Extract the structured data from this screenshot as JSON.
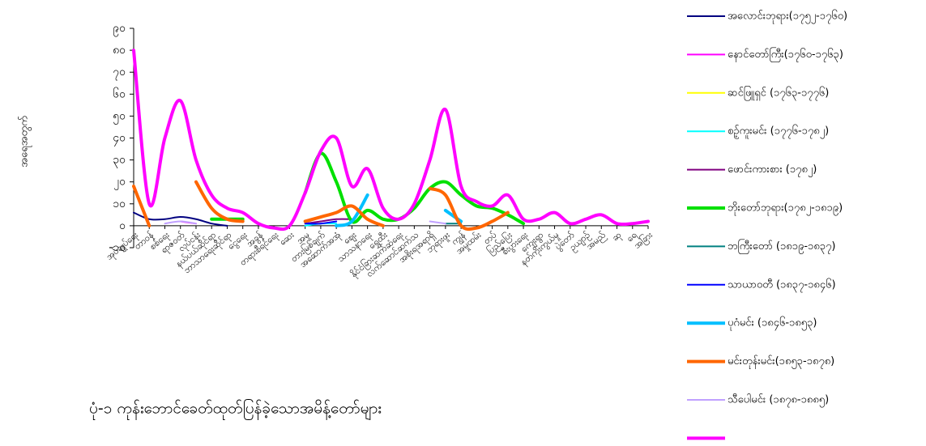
{
  "chart_data": {
    "type": "line",
    "title": "ပုံ-၁ ကုန်းဘောင်ခေတ်ထုတ်ပြန်ခဲ့သောအမိန့်တော်များ",
    "y_label": "အရေအတွက်",
    "categories": [
      "အုပ်ချုပ်ရေး",
      "တာဝန်",
      "စစ်ရေး",
      "ရာဇဝတ်",
      "လုပ်ငန်း",
      "နယ်ပယ်ဆိုင်ရာ",
      "ဘာသာရေးဆိုင်ရာ",
      "ငွေရေး",
      "အခွန်",
      "တရားစီရင်ရေး",
      "ဆေး",
      "အမှု",
      "တားမြစ်ချက်",
      "အဆောက်အအုံ",
      "ဈေး",
      "သာသနာရေး",
      "ရွှေထီး",
      "နိုင်ငံခြားဆက်ဆံရေး",
      "လက်ဆောင်ဆက်သ",
      "အစိုးရအရာရှိ",
      "ဘုရားဖူး",
      "ကျွန်",
      "အမှုထမ်း",
      "တပ်",
      "ပြည်ပြေး",
      "စီးပွားရေး",
      "ကျေးရွာ",
      "နတ်ကိုးကွယ်မှု",
      "ပွဲတော်",
      "ဥယျာဉ်",
      "အမည်",
      "ဆု",
      "ရေ",
      "အခြား"
    ],
    "ylim": [
      -10,
      90
    ],
    "yticks": [
      {
        "value": -10,
        "label": "-၁၀"
      },
      {
        "value": 0,
        "label": "၀"
      },
      {
        "value": 10,
        "label": "၁၀"
      },
      {
        "value": 20,
        "label": "၂၀"
      },
      {
        "value": 30,
        "label": "၃၀"
      },
      {
        "value": 40,
        "label": "၄၀"
      },
      {
        "value": 50,
        "label": "၅၀"
      },
      {
        "value": 60,
        "label": "၆၀"
      },
      {
        "value": 70,
        "label": "၇၀"
      },
      {
        "value": 80,
        "label": "၈၀"
      },
      {
        "value": 90,
        "label": "၉၀"
      }
    ],
    "series": [
      {
        "name": "အလောင်းဘုရား(၁၇၅၂-၁၇၆၀)",
        "color": "#000080",
        "line_width": 2,
        "values": [
          6,
          3,
          3,
          4,
          3,
          1,
          0,
          null,
          null,
          null,
          null,
          null,
          null,
          null,
          null,
          null,
          null,
          null,
          null,
          null,
          null,
          null,
          null,
          null,
          null,
          null,
          null,
          null,
          null,
          null,
          null,
          null,
          null,
          null
        ]
      },
      {
        "name": "နောင်တော်ကြီး(၁၇၆၀-၁၇၆၃)",
        "color": "#ff00ff",
        "line_width": 2,
        "values": [
          null,
          null,
          null,
          2,
          1,
          null,
          null,
          null,
          null,
          null,
          null,
          null,
          null,
          null,
          null,
          null,
          null,
          null,
          null,
          null,
          null,
          null,
          null,
          null,
          null,
          null,
          null,
          null,
          null,
          null,
          null,
          null,
          null,
          null
        ]
      },
      {
        "name": "ဆင်ဖြူရှင် (၁၇၆၃-၁၇၇၆)",
        "color": "#ffff00",
        "line_width": 2,
        "values": [
          null,
          null,
          null,
          null,
          null,
          null,
          null,
          null,
          null,
          null,
          null,
          1,
          1,
          null,
          null,
          null,
          null,
          null,
          null,
          null,
          null,
          null,
          null,
          null,
          null,
          null,
          null,
          null,
          null,
          null,
          null,
          null,
          null,
          null
        ]
      },
      {
        "name": "စဉ့်ကူးမင်း (၁၇၇၆-၁၇၈၂)",
        "color": "#00ffff",
        "line_width": 2,
        "values": [
          null,
          null,
          null,
          null,
          null,
          null,
          null,
          null,
          null,
          null,
          null,
          0,
          1,
          1,
          null,
          null,
          null,
          null,
          null,
          null,
          null,
          null,
          null,
          null,
          null,
          null,
          null,
          null,
          null,
          null,
          null,
          null,
          null,
          null
        ]
      },
      {
        "name": "ဖောင်းကားစား (၁၇၈၂)",
        "color": "#800080",
        "line_width": 2,
        "values": [
          null,
          null,
          null,
          null,
          null,
          null,
          null,
          null,
          null,
          null,
          null,
          1,
          2,
          3,
          3,
          null,
          null,
          null,
          null,
          null,
          null,
          null,
          null,
          null,
          null,
          null,
          null,
          null,
          null,
          null,
          null,
          null,
          null,
          null
        ]
      },
      {
        "name": "ဘိုးတော်ဘုရား(၁၇၈၂-၁၈၁၉)",
        "color": "#00e000",
        "line_width": 4,
        "values": [
          null,
          null,
          null,
          null,
          null,
          3,
          3,
          3,
          null,
          null,
          null,
          15,
          33,
          20,
          2,
          7,
          3,
          3,
          8,
          17,
          20,
          14,
          9,
          8,
          5,
          1,
          null,
          null,
          null,
          null,
          null,
          null,
          null,
          null
        ]
      },
      {
        "name": "ဘကြီးတော် (၁၈၁၉-၁၈၃၇)",
        "color": "#008080",
        "line_width": 2,
        "values": [
          null,
          null,
          null,
          null,
          null,
          null,
          null,
          null,
          null,
          null,
          null,
          null,
          null,
          null,
          null,
          null,
          null,
          null,
          null,
          null,
          1,
          1,
          null,
          null,
          null,
          null,
          null,
          null,
          null,
          null,
          null,
          null,
          null,
          null
        ]
      },
      {
        "name": "သာယာဝတီ (၁၈၃၇-၁၈၄၆)",
        "color": "#0000ff",
        "line_width": 2,
        "values": [
          null,
          null,
          null,
          null,
          null,
          null,
          null,
          null,
          null,
          null,
          null,
          1,
          1,
          2,
          null,
          null,
          null,
          null,
          null,
          null,
          null,
          null,
          null,
          null,
          null,
          null,
          null,
          null,
          null,
          null,
          null,
          null,
          null,
          null
        ]
      },
      {
        "name": "ပုဂံမင်း (၁၈၄၆-၁၈၅၃)",
        "color": "#00bfff",
        "line_width": 4,
        "values": [
          null,
          null,
          null,
          null,
          null,
          null,
          null,
          null,
          null,
          null,
          null,
          null,
          null,
          0,
          2,
          14,
          null,
          null,
          null,
          null,
          7,
          2,
          null,
          null,
          null,
          null,
          null,
          null,
          null,
          null,
          null,
          null,
          null,
          null
        ]
      },
      {
        "name": "မင်းတုန်းမင်း(၁၈၅၃-၁၈၇၈)",
        "color": "#ff6600",
        "line_width": 4,
        "values": [
          18,
          0,
          null,
          null,
          20,
          8,
          3,
          2,
          null,
          null,
          null,
          2,
          4,
          6,
          9,
          3,
          0,
          null,
          null,
          17,
          14,
          0,
          -1,
          2,
          6,
          null,
          null,
          null,
          null,
          null,
          null,
          null,
          null,
          null
        ]
      },
      {
        "name": "သီပေါမင်း (၁၈၇၈-၁၈၈၅)",
        "color": "#c0a0ff",
        "line_width": 2,
        "values": [
          null,
          null,
          1,
          2,
          1,
          null,
          null,
          null,
          null,
          null,
          null,
          null,
          null,
          null,
          null,
          null,
          null,
          null,
          null,
          2,
          1,
          null,
          null,
          null,
          null,
          null,
          null,
          null,
          null,
          null,
          null,
          null,
          null,
          null
        ]
      },
      {
        "color": "#ff00ff",
        "line_width": 4,
        "values": [
          80,
          10,
          40,
          57,
          30,
          14,
          8,
          6,
          1,
          -1,
          0,
          15,
          34,
          40,
          18,
          26,
          8,
          3,
          10,
          30,
          53,
          18,
          11,
          9,
          14,
          3,
          3,
          6,
          1,
          3,
          5,
          1,
          1,
          2
        ]
      }
    ]
  }
}
